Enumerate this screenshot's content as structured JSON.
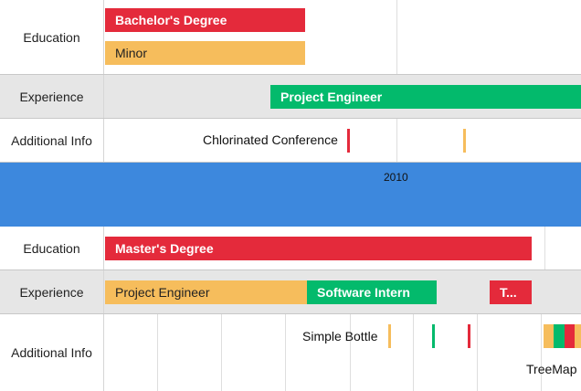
{
  "top_section": {
    "rows": [
      {
        "label": "Education"
      },
      {
        "label": "Experience"
      },
      {
        "label": "Additional Info"
      }
    ],
    "education": {
      "bar1": "Bachelor's Degree",
      "bar2": "Minor"
    },
    "experience": {
      "bar1": "Project Engineer"
    },
    "additional": {
      "event1": "Chlorinated Conference"
    }
  },
  "year_band": {
    "label": "2010"
  },
  "bottom_section": {
    "rows": [
      {
        "label": "Education"
      },
      {
        "label": "Experience"
      },
      {
        "label": "Additional Info"
      }
    ],
    "education": {
      "bar1": "Master's Degree"
    },
    "experience": {
      "bar1": "Project Engineer",
      "bar2": "Software Intern",
      "bar3": "T..."
    },
    "additional": {
      "event1": "Simple Bottle",
      "event2": "TreeMap"
    }
  },
  "colors": {
    "red": "#e42a3b",
    "yellow": "#f6bd5c",
    "green": "#03ba6c",
    "blue_band": "#3d88dd",
    "shaded_row": "#e6e6e6"
  }
}
